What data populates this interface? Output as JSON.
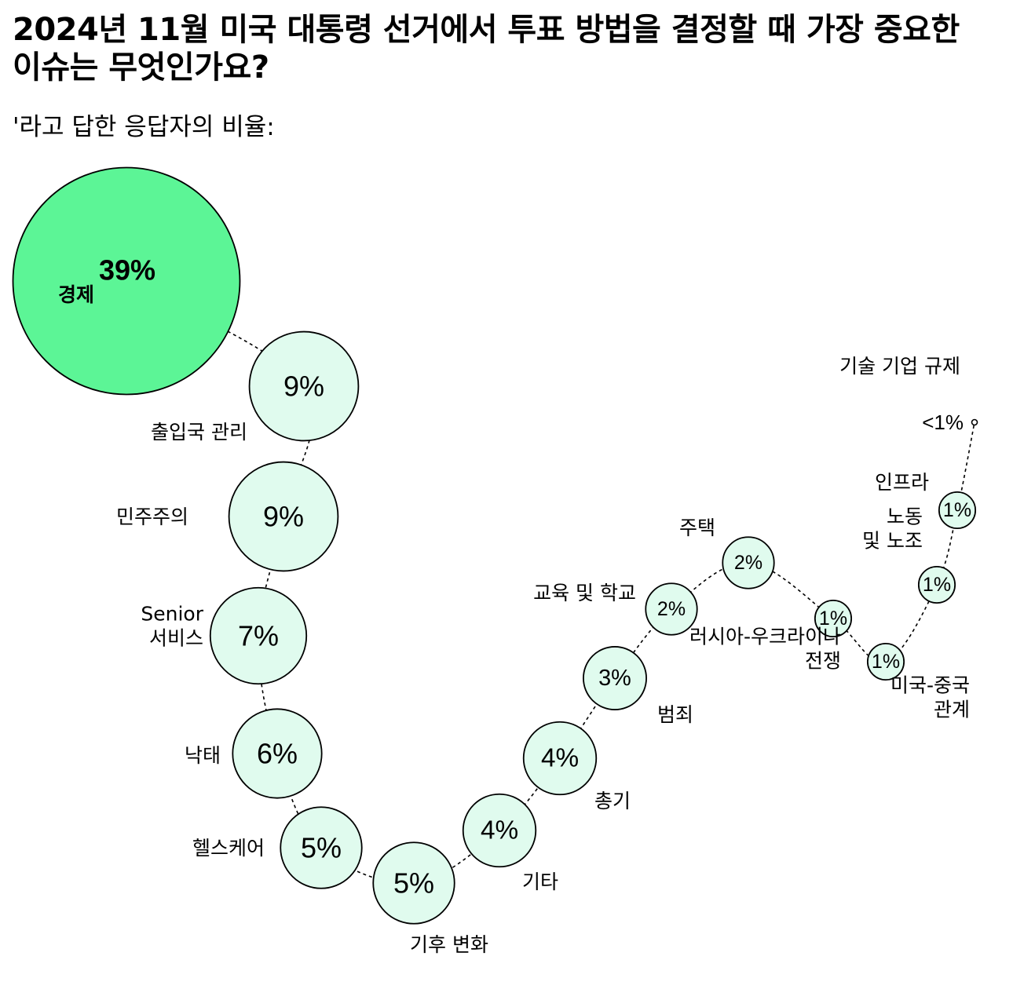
{
  "title": "2024년 11월 미국 대통령 선거에서 투표 방법을 결정할 때 가장 중요한 이슈는 무엇인가요?",
  "subtitle": "'라고 답한 응답자의 비율:",
  "colors": {
    "highlight": "#5cf596",
    "bubble": "#e0fbee",
    "stroke": "#000000"
  },
  "chart_data": {
    "type": "bubble",
    "unit": "%",
    "items": [
      {
        "label": "경제",
        "value": 39,
        "display": "39%"
      },
      {
        "label": "출입국 관리",
        "value": 9,
        "display": "9%"
      },
      {
        "label": "민주주의",
        "value": 9,
        "display": "9%"
      },
      {
        "label": "Senior\n서비스",
        "value": 7,
        "display": "7%"
      },
      {
        "label": "낙태",
        "value": 6,
        "display": "6%"
      },
      {
        "label": "헬스케어",
        "value": 5,
        "display": "5%"
      },
      {
        "label": "기후 변화",
        "value": 5,
        "display": "5%"
      },
      {
        "label": "기타",
        "value": 4,
        "display": "4%"
      },
      {
        "label": "총기",
        "value": 4,
        "display": "4%"
      },
      {
        "label": "범죄",
        "value": 3,
        "display": "3%"
      },
      {
        "label": "교육 및 학교",
        "value": 2,
        "display": "2%"
      },
      {
        "label": "주택",
        "value": 2,
        "display": "2%"
      },
      {
        "label": "러시아-우크라이나\n전쟁",
        "value": 1,
        "display": "1%"
      },
      {
        "label": "미국-중국\n관계",
        "value": 1,
        "display": "1%"
      },
      {
        "label": "노동\n및 노조",
        "value": 1,
        "display": "1%"
      },
      {
        "label": "인프라",
        "value": 1,
        "display": "1%"
      },
      {
        "label": "기술 기업 규제",
        "value": 0.3,
        "display": "<1%"
      }
    ]
  }
}
